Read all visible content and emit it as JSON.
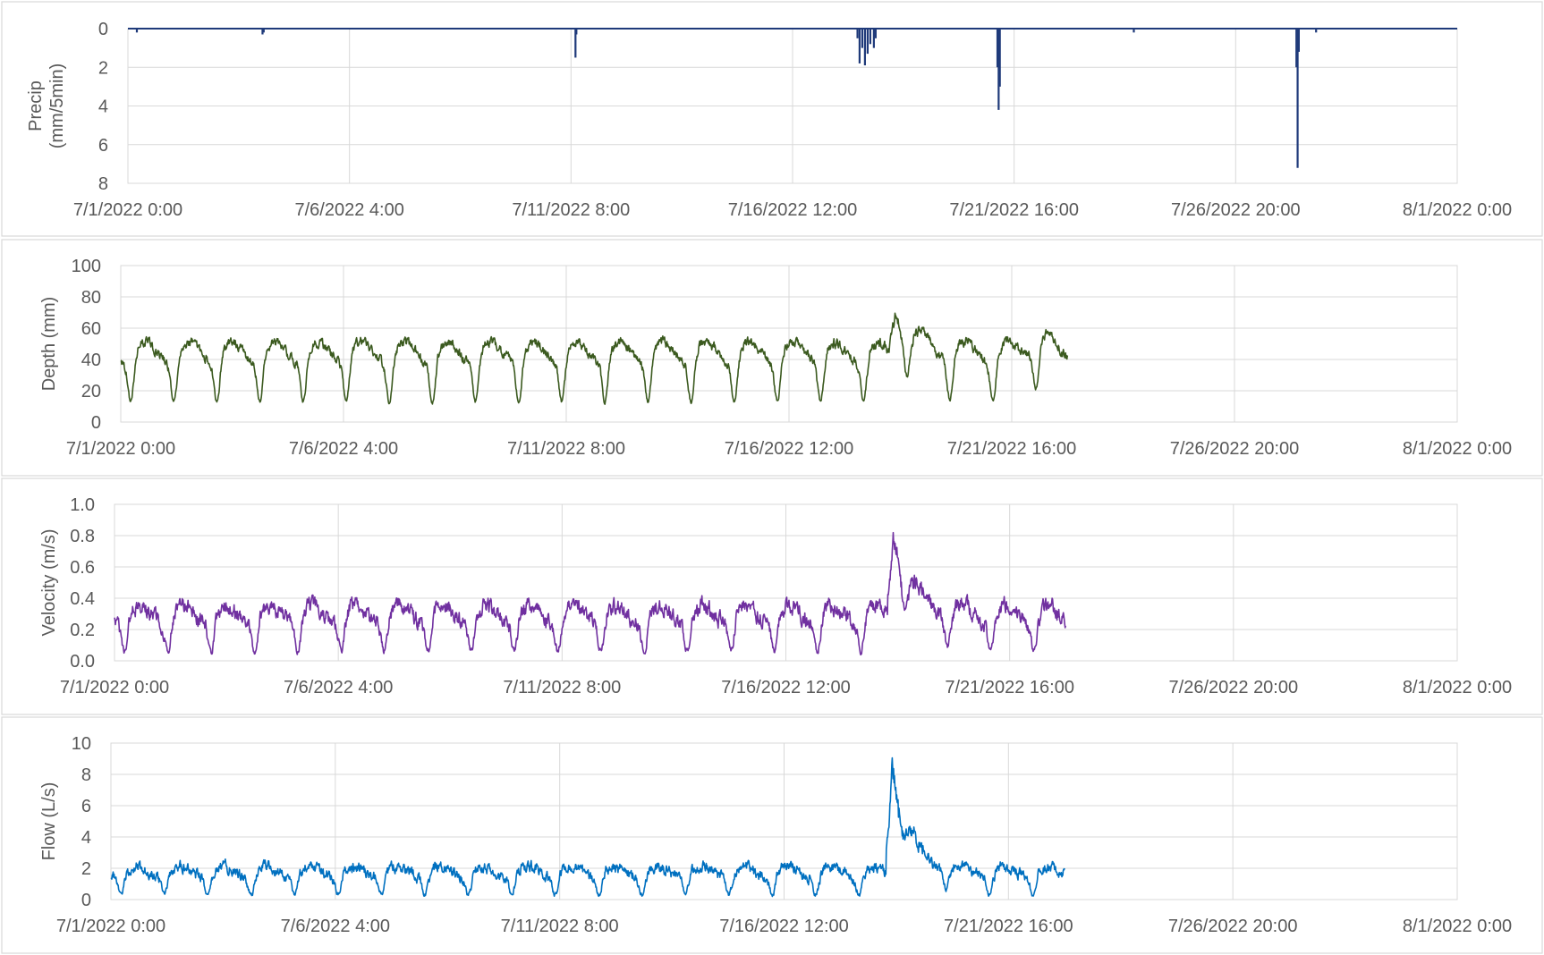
{
  "colors": {
    "precip": "#1f3a7a",
    "depth": "#3b5a1f",
    "velocity": "#7030a0",
    "flow": "#0070c0",
    "grid": "#d9d9d9",
    "text": "#595959"
  },
  "chart_data": [
    {
      "type": "bar",
      "title": "",
      "ylabel": "Precip (mm/5min)",
      "ylabel_lines": [
        "Precip",
        "(mm/5min)"
      ],
      "y_inverted": true,
      "ylim": [
        0,
        8
      ],
      "yticks": [
        0,
        2,
        4,
        6,
        8
      ],
      "yticklabels": [
        "0",
        "2",
        "4",
        "6",
        "8"
      ],
      "xlim": [
        "7/1/2022 0:00",
        "8/1/2022 0:00"
      ],
      "xticklabels": [
        "7/1/2022 0:00",
        "7/6/2022 4:00",
        "7/11/2022 8:00",
        "7/16/2022 12:00",
        "7/21/2022 16:00",
        "7/26/2022 20:00",
        "8/1/2022 0:00"
      ],
      "grid": true,
      "events": [
        {
          "t": "7/1/2022 5:00",
          "v": 0.2
        },
        {
          "t": "7/4/2022 3:20",
          "v": 0.3
        },
        {
          "t": "7/4/2022 4:00",
          "v": 0.2
        },
        {
          "t": "7/11/2022 10:30",
          "v": 1.5
        },
        {
          "t": "7/11/2022 11:00",
          "v": 0.3
        },
        {
          "t": "7/18/2022 0:20",
          "v": 0.5
        },
        {
          "t": "7/18/2022 1:30",
          "v": 1.8
        },
        {
          "t": "7/18/2022 3:00",
          "v": 1.0
        },
        {
          "t": "7/18/2022 4:30",
          "v": 1.9
        },
        {
          "t": "7/18/2022 6:00",
          "v": 1.3
        },
        {
          "t": "7/18/2022 7:30",
          "v": 0.8
        },
        {
          "t": "7/18/2022 9:30",
          "v": 1.0
        },
        {
          "t": "7/18/2022 10:30",
          "v": 0.5
        },
        {
          "t": "7/21/2022 6:40",
          "v": 2.0
        },
        {
          "t": "7/21/2022 7:20",
          "v": 4.2
        },
        {
          "t": "7/21/2022 8:00",
          "v": 3.0
        },
        {
          "t": "7/24/2022 11:00",
          "v": 0.2
        },
        {
          "t": "7/28/2022 6:00",
          "v": 2.0
        },
        {
          "t": "7/28/2022 6:40",
          "v": 7.2
        },
        {
          "t": "7/28/2022 7:20",
          "v": 1.2
        },
        {
          "t": "7/28/2022 17:00",
          "v": 0.2
        }
      ]
    },
    {
      "type": "line",
      "title": "",
      "ylabel": "Depth (mm)",
      "ylim": [
        0,
        100
      ],
      "yticks": [
        0,
        20,
        40,
        60,
        80,
        100
      ],
      "yticklabels": [
        "0",
        "20",
        "40",
        "60",
        "80",
        "100"
      ],
      "xlim": [
        "7/1/2022 0:00",
        "8/1/2022 0:00"
      ],
      "xticklabels": [
        "7/1/2022 0:00",
        "7/6/2022 4:00",
        "7/11/2022 8:00",
        "7/16/2022 12:00",
        "7/21/2022 16:00",
        "7/26/2022 20:00",
        "8/1/2022 0:00"
      ],
      "grid": true,
      "data_start": "7/1/2022 0:00",
      "data_end": "7/22/2022 23:00",
      "daily_pattern": {
        "night_min": 13,
        "day_mean": 45,
        "amplitude": 17,
        "noise": 6
      },
      "storm_peak": {
        "t": "7/18/2022 23:00",
        "v": 77
      },
      "storm_other": [
        {
          "t": "7/22/2022 7:00",
          "v": 60
        }
      ]
    },
    {
      "type": "line",
      "title": "",
      "ylabel": "Velocity (m/s)",
      "ylim": [
        0,
        1
      ],
      "yticks": [
        0,
        0.2,
        0.4,
        0.6,
        0.8,
        1.0
      ],
      "yticklabels": [
        "0.0",
        "0.2",
        "0.4",
        "0.6",
        "0.8",
        "1.0"
      ],
      "xlim": [
        "7/1/2022 0:00",
        "8/1/2022 0:00"
      ],
      "xticklabels": [
        "7/1/2022 0:00",
        "7/6/2022 4:00",
        "7/11/2022 8:00",
        "7/16/2022 12:00",
        "7/21/2022 16:00",
        "7/26/2022 20:00",
        "8/1/2022 0:00"
      ],
      "grid": true,
      "data_start": "7/1/2022 0:00",
      "data_end": "7/22/2022 23:00",
      "daily_pattern": {
        "night_min": 0.06,
        "day_mean": 0.3,
        "amplitude": 0.15,
        "noise": 0.1
      },
      "storm_peak": {
        "t": "7/18/2022 23:30",
        "v": 0.88
      }
    },
    {
      "type": "line",
      "title": "",
      "ylabel": "Flow (L/s)",
      "ylim": [
        0,
        10
      ],
      "yticks": [
        0,
        2,
        4,
        6,
        8,
        10
      ],
      "yticklabels": [
        "0",
        "2",
        "4",
        "6",
        "8",
        "10"
      ],
      "xlim": [
        "7/1/2022 0:00",
        "8/1/2022 0:00"
      ],
      "xticklabels": [
        "7/1/2022 0:00",
        "7/6/2022 4:00",
        "7/11/2022 8:00",
        "7/16/2022 12:00",
        "7/21/2022 16:00",
        "7/26/2022 20:00",
        "8/1/2022 0:00"
      ],
      "grid": true,
      "data_start": "7/1/2022 0:00",
      "data_end": "7/22/2022 23:00",
      "daily_pattern": {
        "night_min": 0.3,
        "day_mean": 1.8,
        "amplitude": 0.9,
        "noise": 0.7
      },
      "storm_peak": {
        "t": "7/18/2022 23:30",
        "v": 9.4
      }
    }
  ]
}
